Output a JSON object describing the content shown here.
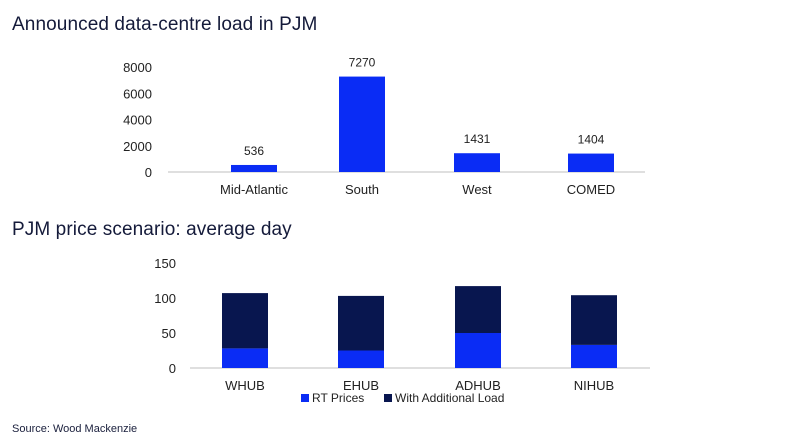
{
  "chart_data": [
    {
      "type": "bar",
      "title": "Announced data-centre load in PJM",
      "categories": [
        "Mid-Atlantic",
        "South",
        "West",
        "COMED"
      ],
      "values": [
        536,
        7270,
        1431,
        1404
      ],
      "data_labels": [
        "536",
        "7270",
        "1431",
        "1404"
      ],
      "ylim": [
        0,
        8000
      ],
      "yticks": [
        0,
        2000,
        4000,
        6000,
        8000
      ],
      "color": "#0a2cf5",
      "grid": false,
      "legend": false
    },
    {
      "type": "bar",
      "stacked": true,
      "title": "PJM price scenario: average day",
      "categories": [
        "WHUB",
        "EHUB",
        "ADHUB",
        "NIHUB"
      ],
      "series": [
        {
          "name": "RT Prices",
          "values": [
            28,
            25,
            50,
            33
          ],
          "color": "#0a2cf5"
        },
        {
          "name": "With Additional Load",
          "values": [
            79,
            78,
            67,
            71
          ],
          "color": "#08164f"
        }
      ],
      "ylim": [
        0,
        150
      ],
      "yticks": [
        0,
        50,
        100,
        150
      ],
      "grid": false,
      "legend": "bottom"
    }
  ],
  "source": "Source: Wood Mackenzie"
}
